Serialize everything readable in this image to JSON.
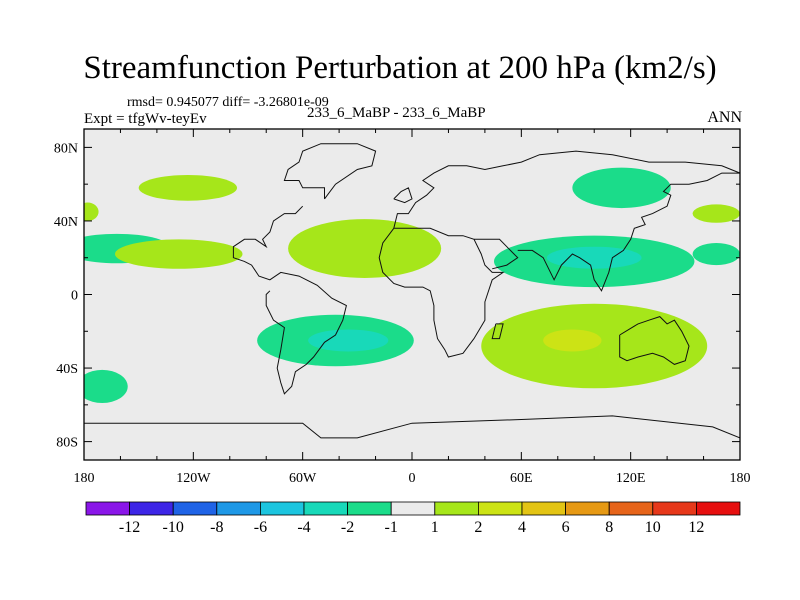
{
  "chart_data": {
    "type": "heatmap",
    "title": "Streamfunction Perturbation at 200 hPa (km2/s)",
    "stats_line": "rmsd= 0.945077  diff= -3.26801e-09",
    "left_label": "Expt = tfgWv-teyEv",
    "center_label": "233_6_MaBP - 233_6_MaBP",
    "right_label": "ANN",
    "x_axis": {
      "range": [
        -180,
        180
      ],
      "tick_values": [
        -180,
        -120,
        -60,
        0,
        60,
        120,
        180
      ],
      "tick_labels": [
        "180",
        "120W",
        "60W",
        "0",
        "60E",
        "120E",
        "180"
      ]
    },
    "y_axis": {
      "range": [
        -90,
        90
      ],
      "tick_values": [
        80,
        40,
        0,
        -40,
        -80
      ],
      "tick_labels": [
        "80N",
        "40N",
        "0",
        "40S",
        "80S"
      ]
    },
    "colorbar": {
      "labels": [
        "-12",
        "-10",
        "-8",
        "-6",
        "-4",
        "-2",
        "-1",
        "1",
        "2",
        "4",
        "6",
        "8",
        "10",
        "12"
      ],
      "colors": [
        "#8a16e8",
        "#3d25e6",
        "#1f63e6",
        "#1e98e6",
        "#1cc5df",
        "#18d9b9",
        "#1bdc8a",
        "#ebebeb",
        "#a6e61a",
        "#cce315",
        "#e3c414",
        "#e69914",
        "#e6641a",
        "#e6381a",
        "#e60f0f"
      ]
    },
    "contour_regions": [
      {
        "lon": -123,
        "lat": 58,
        "rx": 27,
        "ry": 7,
        "value": 1.4
      },
      {
        "lon": -178,
        "lat": 45,
        "rx": 6,
        "ry": 5,
        "value": 1.4
      },
      {
        "lon": -162,
        "lat": 25,
        "rx": 30,
        "ry": 8,
        "value": -1.4
      },
      {
        "lon": -128,
        "lat": 22,
        "rx": 35,
        "ry": 8,
        "value": 1.4
      },
      {
        "lon": -26,
        "lat": 25,
        "rx": 42,
        "ry": 16,
        "value": 1.4
      },
      {
        "lon": -42,
        "lat": -25,
        "rx": 43,
        "ry": 14,
        "value": -1.4
      },
      {
        "lon": -35,
        "lat": -25,
        "rx": 22,
        "ry": 6,
        "value": -3
      },
      {
        "lon": -170,
        "lat": -50,
        "rx": 14,
        "ry": 9,
        "value": -1.4
      },
      {
        "lon": 100,
        "lat": 18,
        "rx": 55,
        "ry": 14,
        "value": -1.4
      },
      {
        "lon": 100,
        "lat": 20,
        "rx": 26,
        "ry": 6,
        "value": -3
      },
      {
        "lon": 115,
        "lat": 58,
        "rx": 27,
        "ry": 11,
        "value": -1.4
      },
      {
        "lon": 167,
        "lat": 44,
        "rx": 13,
        "ry": 5,
        "value": 1.4
      },
      {
        "lon": 167,
        "lat": 22,
        "rx": 13,
        "ry": 6,
        "value": -1.4
      },
      {
        "lon": 100,
        "lat": -28,
        "rx": 62,
        "ry": 23,
        "value": 1.4
      },
      {
        "lon": 88,
        "lat": -25,
        "rx": 16,
        "ry": 6,
        "value": 3
      }
    ],
    "coastline_lonlat": [
      [
        -48,
        52
      ],
      [
        -48,
        58
      ],
      [
        -60,
        58
      ],
      [
        -62,
        62
      ],
      [
        -70,
        62
      ],
      [
        -68,
        68
      ],
      [
        -62,
        72
      ],
      [
        -60,
        78
      ],
      [
        -50,
        82
      ],
      [
        -30,
        82
      ],
      [
        -20,
        78
      ],
      [
        -22,
        70
      ],
      [
        -30,
        68
      ],
      [
        -42,
        60
      ],
      [
        -48,
        52
      ],
      null,
      [
        -60,
        48
      ],
      [
        -64,
        44
      ],
      [
        -70,
        44
      ],
      [
        -76,
        40
      ],
      [
        -78,
        34
      ],
      [
        -82,
        30
      ],
      [
        -80,
        26
      ],
      [
        -86,
        30
      ],
      [
        -92,
        30
      ],
      [
        -98,
        26
      ],
      [
        -98,
        20
      ],
      [
        -92,
        18
      ],
      [
        -88,
        16
      ],
      [
        -84,
        10
      ],
      [
        -78,
        8
      ],
      [
        -72,
        12
      ],
      [
        -62,
        10
      ],
      [
        -52,
        5
      ],
      [
        -44,
        -2
      ],
      [
        -36,
        -6
      ],
      [
        -38,
        -14
      ],
      [
        -42,
        -22
      ],
      [
        -48,
        -26
      ],
      [
        -54,
        -34
      ],
      [
        -58,
        -38
      ],
      [
        -64,
        -42
      ],
      [
        -66,
        -50
      ],
      [
        -70,
        -54
      ],
      [
        -72,
        -48
      ],
      [
        -74,
        -40
      ],
      [
        -72,
        -30
      ],
      [
        -70,
        -18
      ],
      [
        -76,
        -14
      ],
      [
        -80,
        -6
      ],
      [
        -80,
        0
      ],
      [
        -78,
        2
      ],
      null,
      [
        -10,
        36
      ],
      [
        -8,
        44
      ],
      [
        -2,
        44
      ],
      [
        2,
        50
      ],
      [
        8,
        54
      ],
      [
        12,
        58
      ],
      [
        6,
        62
      ],
      [
        12,
        66
      ],
      [
        20,
        70
      ],
      [
        30,
        70
      ],
      [
        40,
        68
      ],
      [
        50,
        70
      ],
      [
        60,
        72
      ],
      [
        70,
        76
      ],
      [
        90,
        78
      ],
      [
        110,
        76
      ],
      [
        130,
        72
      ],
      [
        150,
        72
      ],
      [
        170,
        70
      ],
      [
        180,
        66
      ],
      null,
      [
        -10,
        36
      ],
      [
        -16,
        28
      ],
      [
        -18,
        20
      ],
      [
        -16,
        12
      ],
      [
        -10,
        6
      ],
      [
        -4,
        4
      ],
      [
        6,
        4
      ],
      [
        10,
        2
      ],
      [
        12,
        -6
      ],
      [
        12,
        -14
      ],
      [
        14,
        -24
      ],
      [
        18,
        -30
      ],
      [
        20,
        -34
      ],
      [
        28,
        -32
      ],
      [
        34,
        -24
      ],
      [
        40,
        -14
      ],
      [
        40,
        -4
      ],
      [
        44,
        8
      ],
      [
        50,
        12
      ],
      [
        44,
        12
      ],
      [
        40,
        16
      ],
      [
        38,
        22
      ],
      [
        34,
        30
      ],
      [
        28,
        32
      ],
      [
        20,
        32
      ],
      [
        10,
        36
      ],
      [
        0,
        36
      ],
      [
        -10,
        36
      ],
      null,
      [
        34,
        30
      ],
      [
        40,
        30
      ],
      [
        48,
        30
      ],
      [
        52,
        26
      ],
      [
        56,
        22
      ],
      [
        58,
        20
      ],
      [
        52,
        16
      ],
      [
        44,
        14
      ],
      null,
      [
        58,
        24
      ],
      [
        66,
        24
      ],
      [
        72,
        20
      ],
      [
        78,
        8
      ],
      [
        82,
        16
      ],
      [
        88,
        22
      ],
      [
        92,
        20
      ],
      [
        98,
        16
      ],
      [
        100,
        8
      ],
      [
        104,
        2
      ],
      [
        108,
        12
      ],
      [
        110,
        20
      ],
      [
        116,
        24
      ],
      [
        120,
        30
      ],
      [
        122,
        36
      ],
      [
        128,
        38
      ],
      [
        126,
        42
      ],
      [
        132,
        44
      ],
      [
        140,
        48
      ],
      [
        142,
        54
      ],
      [
        138,
        56
      ],
      [
        142,
        60
      ],
      [
        152,
        60
      ],
      [
        162,
        62
      ],
      [
        170,
        66
      ],
      [
        180,
        66
      ],
      null,
      [
        114,
        -22
      ],
      [
        114,
        -34
      ],
      [
        118,
        -36
      ],
      [
        124,
        -34
      ],
      [
        132,
        -32
      ],
      [
        138,
        -34
      ],
      [
        144,
        -38
      ],
      [
        150,
        -36
      ],
      [
        152,
        -28
      ],
      [
        148,
        -20
      ],
      [
        144,
        -14
      ],
      [
        140,
        -16
      ],
      [
        136,
        -12
      ],
      [
        130,
        -14
      ],
      [
        124,
        -16
      ],
      [
        114,
        -22
      ],
      null,
      [
        46,
        -16
      ],
      [
        50,
        -16
      ],
      [
        48,
        -24
      ],
      [
        44,
        -24
      ],
      [
        46,
        -16
      ],
      null,
      [
        -180,
        -70
      ],
      [
        -60,
        -70
      ],
      [
        -50,
        -78
      ],
      [
        -30,
        -78
      ],
      [
        0,
        -70
      ],
      [
        60,
        -68
      ],
      [
        110,
        -66
      ],
      [
        165,
        -72
      ],
      [
        180,
        -78
      ],
      null,
      [
        -10,
        52
      ],
      [
        -6,
        56
      ],
      [
        -2,
        58
      ],
      [
        0,
        52
      ],
      [
        -4,
        50
      ],
      [
        -10,
        52
      ]
    ]
  }
}
